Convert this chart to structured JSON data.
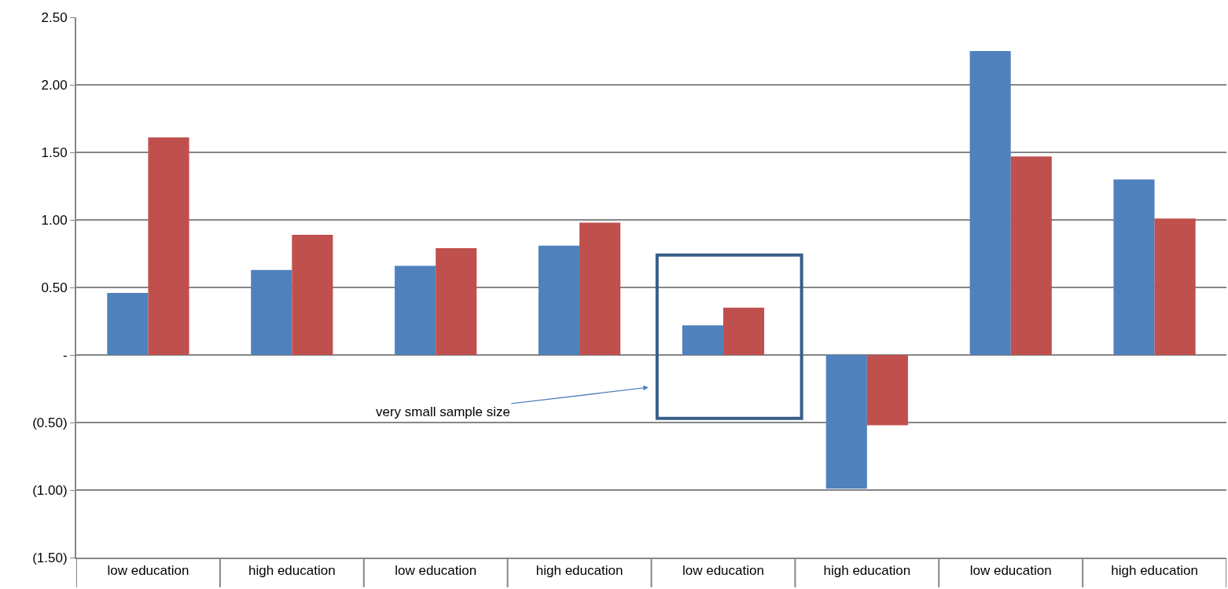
{
  "chart_data": {
    "type": "bar",
    "categories": [
      "low education",
      "high education",
      "low education",
      "high education",
      "low education",
      "high education",
      "low education",
      "high education"
    ],
    "series": [
      {
        "color": "#4f81bd",
        "values": [
          0.46,
          0.63,
          0.66,
          0.81,
          0.22,
          -0.99,
          2.25,
          1.3
        ]
      },
      {
        "color": "#c0504d",
        "values": [
          1.61,
          0.89,
          0.79,
          0.98,
          0.35,
          -0.52,
          1.47,
          1.01
        ]
      }
    ],
    "ylim": [
      -1.5,
      2.5
    ],
    "yticks": [
      {
        "value": -1.5,
        "label": "(1.50)"
      },
      {
        "value": -1,
        "label": "(1.00)"
      },
      {
        "value": -0.5,
        "label": "(0.50)"
      },
      {
        "value": 0,
        "label": "-"
      },
      {
        "value": 0.5,
        "label": "0.50"
      },
      {
        "value": 1,
        "label": "1.00"
      },
      {
        "value": 1.5,
        "label": "1.50"
      },
      {
        "value": 2,
        "label": "2.00"
      },
      {
        "value": 2.5,
        "label": "2.50"
      }
    ],
    "grid": "y",
    "annotations": [
      "very small sample size"
    ]
  }
}
